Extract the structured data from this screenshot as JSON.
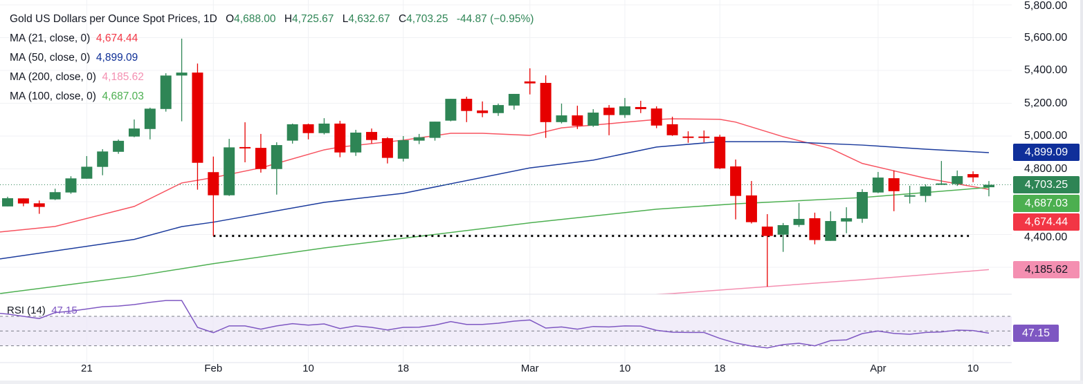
{
  "header": {
    "title": "Gold US Dollars per Ounce Spot Prices, 1D",
    "open_label": "O",
    "open": "4,688.00",
    "high_label": "H",
    "high": "4,725.67",
    "low_label": "L",
    "low": "4,632.67",
    "close_label": "C",
    "close": "4,703.25",
    "change": "-44.87 (−0.95%)"
  },
  "indicators": [
    {
      "label": "MA (21, close, 0)",
      "value": "4,674.44",
      "color": "#f23645"
    },
    {
      "label": "MA (50, close, 0)",
      "value": "4,899.09",
      "color": "#0d2e96"
    },
    {
      "label": "MA (200, close, 0)",
      "value": "4,185.62",
      "color": "#f48fb1"
    },
    {
      "label": "MA (100, close, 0)",
      "value": "4,687.03",
      "color": "#4caf50"
    }
  ],
  "rsi": {
    "label": "RSI (14)",
    "value": "47.15",
    "color": "#7e57c2"
  },
  "price_tags": [
    {
      "value": "4,899.09",
      "price": 4899.09,
      "bg": "#0f2f9a",
      "fg": "#ffffff"
    },
    {
      "value": "4,703.25",
      "price": 4703.25,
      "bg": "#2e8555",
      "fg": "#ffffff"
    },
    {
      "value": "4,687.03",
      "price": 4687.03,
      "bg": "#4caf50",
      "fg": "#ffffff"
    },
    {
      "value": "4,674.44",
      "price": 4674.44,
      "bg": "#f23645",
      "fg": "#ffffff"
    },
    {
      "value": "4,185.62",
      "price": 4185.62,
      "bg": "#f48fb1",
      "fg": "#131722"
    }
  ],
  "rsi_tag": {
    "value": "47.15",
    "bg": "#7e57c2"
  },
  "colors": {
    "up": "#2e8555",
    "down": "#e60000",
    "grid": "#f0f1f4",
    "support_line": "#000000"
  },
  "chart_data": {
    "type": "candlestick",
    "title": "Gold US Dollars per Ounce Spot Prices, 1D",
    "ylim": [
      3970,
      5830
    ],
    "y_ticks": [
      "5,800.00",
      "5,600.00",
      "5,400.00",
      "5,200.00",
      "5,000.00",
      "4,800.00",
      "4,400.00"
    ],
    "y_tick_values": [
      5800,
      5600,
      5400,
      5200,
      5000,
      4800,
      4400
    ],
    "x_ticks": [
      {
        "label": "21",
        "index": 5
      },
      {
        "label": "Feb",
        "index": 13
      },
      {
        "label": "10",
        "index": 19
      },
      {
        "label": "18",
        "index": 25
      },
      {
        "label": "Mar",
        "index": 33
      },
      {
        "label": "10",
        "index": 39
      },
      {
        "label": "18",
        "index": 45
      },
      {
        "label": "Apr",
        "index": 55
      },
      {
        "label": "10",
        "index": 61
      }
    ],
    "grid": true,
    "ohlc": [
      [
        4571,
        4630,
        4571,
        4621
      ],
      [
        4620,
        4620,
        4572,
        4589
      ],
      [
        4590,
        4607,
        4526,
        4568
      ],
      [
        4614,
        4679,
        4610,
        4658
      ],
      [
        4656,
        4755,
        4648,
        4742
      ],
      [
        4740,
        4878,
        4740,
        4813
      ],
      [
        4812,
        4920,
        4761,
        4906
      ],
      [
        4904,
        4979,
        4892,
        4971
      ],
      [
        4997,
        5101,
        4993,
        5046
      ],
      [
        5043,
        5173,
        4980,
        5167
      ],
      [
        5165,
        5383,
        5149,
        5369
      ],
      [
        5369,
        5594,
        5090,
        5387
      ],
      [
        5387,
        5442,
        4673,
        4837
      ],
      [
        4780,
        4875,
        4391,
        4639
      ],
      [
        4639,
        4983,
        4635,
        4931
      ],
      [
        4933,
        5084,
        4840,
        4925
      ],
      [
        4928,
        5013,
        4777,
        4799
      ],
      [
        4799,
        4962,
        4643,
        4945
      ],
      [
        4972,
        5076,
        4954,
        5072
      ],
      [
        5072,
        5076,
        4980,
        5018
      ],
      [
        5018,
        5109,
        5010,
        5076
      ],
      [
        5076,
        5093,
        4871,
        4900
      ],
      [
        4900,
        5038,
        4879,
        5021
      ],
      [
        5025,
        5046,
        4955,
        4976
      ],
      [
        4987,
        4993,
        4833,
        4867
      ],
      [
        4862,
        5000,
        4845,
        4975
      ],
      [
        4972,
        5013,
        4951,
        4993
      ],
      [
        4989,
        5088,
        4972,
        5088
      ],
      [
        5094,
        5227,
        5090,
        5227
      ],
      [
        5227,
        5240,
        5085,
        5153
      ],
      [
        5156,
        5211,
        5115,
        5140
      ],
      [
        5140,
        5198,
        5123,
        5189
      ],
      [
        5186,
        5257,
        5161,
        5257
      ],
      [
        5333,
        5413,
        5254,
        5321
      ],
      [
        5324,
        5370,
        4989,
        5085
      ],
      [
        5085,
        5198,
        5077,
        5126
      ],
      [
        5126,
        5185,
        5043,
        5063
      ],
      [
        5063,
        5164,
        5056,
        5143
      ],
      [
        5173,
        5189,
        5005,
        5128
      ],
      [
        5128,
        5232,
        5111,
        5181
      ],
      [
        5177,
        5215,
        5140,
        5164
      ],
      [
        5168,
        5181,
        5048,
        5064
      ],
      [
        5072,
        5118,
        5001,
        5005
      ],
      [
        4997,
        5029,
        4959,
        4995
      ],
      [
        4997,
        5034,
        4962,
        4993
      ],
      [
        4996,
        5008,
        4799,
        4803
      ],
      [
        4815,
        4857,
        4492,
        4635
      ],
      [
        4638,
        4726,
        4467,
        4475
      ],
      [
        4448,
        4524,
        4082,
        4391
      ],
      [
        4399,
        4470,
        4294,
        4457
      ],
      [
        4458,
        4592,
        4446,
        4495
      ],
      [
        4499,
        4533,
        4340,
        4366
      ],
      [
        4361,
        4541,
        4361,
        4482
      ],
      [
        4479,
        4566,
        4408,
        4499
      ],
      [
        4496,
        4676,
        4471,
        4659
      ],
      [
        4656,
        4781,
        4652,
        4747
      ],
      [
        4743,
        4790,
        4542,
        4664
      ],
      [
        4635,
        4697,
        4589,
        4639
      ],
      [
        4635,
        4705,
        4597,
        4693
      ],
      [
        4707,
        4848,
        4707,
        4711
      ],
      [
        4707,
        4790,
        4696,
        4756
      ],
      [
        4768,
        4785,
        4719,
        4748
      ],
      [
        4688.0,
        4725.67,
        4632.67,
        4703.25
      ]
    ],
    "series": [
      {
        "name": "MA (21, close, 0)",
        "color": "#f7525f",
        "points": [
          [
            0,
            4415
          ],
          [
            3,
            4449
          ],
          [
            8,
            4571
          ],
          [
            11,
            4714
          ],
          [
            13,
            4747
          ],
          [
            16,
            4806
          ],
          [
            20,
            4916
          ],
          [
            21,
            4933
          ],
          [
            25,
            4975
          ],
          [
            28,
            5017
          ],
          [
            30,
            5017
          ],
          [
            33,
            5004
          ],
          [
            35,
            5050
          ],
          [
            41,
            5101
          ],
          [
            42,
            5105
          ],
          [
            45,
            5102
          ],
          [
            46,
            5085
          ],
          [
            49,
            4996
          ],
          [
            52,
            4924
          ],
          [
            54,
            4833
          ],
          [
            58,
            4743
          ],
          [
            62,
            4674.44
          ]
        ]
      },
      {
        "name": "MA (50, close, 0)",
        "color": "#1a3a9c",
        "points": [
          [
            0,
            4251
          ],
          [
            8,
            4370
          ],
          [
            11,
            4448
          ],
          [
            13,
            4475
          ],
          [
            20,
            4596
          ],
          [
            25,
            4651
          ],
          [
            33,
            4806
          ],
          [
            37,
            4853
          ],
          [
            41,
            4933
          ],
          [
            45,
            4966
          ],
          [
            49,
            4966
          ],
          [
            54,
            4945
          ],
          [
            58,
            4920
          ],
          [
            62,
            4899.09
          ]
        ]
      },
      {
        "name": "MA (100, close, 0)",
        "color": "#4caf50",
        "points": [
          [
            0,
            4040
          ],
          [
            8,
            4145
          ],
          [
            13,
            4222
          ],
          [
            20,
            4318
          ],
          [
            33,
            4471
          ],
          [
            41,
            4554
          ],
          [
            46,
            4587
          ],
          [
            54,
            4625
          ],
          [
            62,
            4687.03
          ]
        ]
      },
      {
        "name": "MA (200, close, 0)",
        "color": "#f48fb1",
        "points": [
          [
            40,
            4030
          ],
          [
            42,
            4040
          ],
          [
            48,
            4082
          ],
          [
            54,
            4124
          ],
          [
            62,
            4185.62
          ]
        ]
      }
    ],
    "support_level": {
      "price": 4391,
      "from_index": 13,
      "to_index": 61
    },
    "current_price": 4703.25,
    "rsi": {
      "name": "RSI (14)",
      "levels": [
        70,
        50,
        30
      ],
      "values": [
        73,
        70,
        67,
        75,
        77,
        80,
        83,
        84,
        86,
        89,
        91.5,
        91.5,
        55,
        47.7,
        57,
        57,
        52.5,
        57,
        60,
        58,
        59.7,
        53.4,
        57,
        55,
        51.5,
        55,
        55.2,
        58,
        62.8,
        59,
        59,
        60.6,
        63.4,
        65,
        54,
        55.6,
        52.5,
        56.2,
        55.6,
        57,
        56.7,
        51,
        48.4,
        48.1,
        48,
        40,
        33.7,
        29.6,
        27,
        31.5,
        33.4,
        29.9,
        37,
        38,
        46.5,
        50,
        46.8,
        45.6,
        48,
        48.7,
        51.2,
        50.6,
        47.15
      ]
    }
  }
}
